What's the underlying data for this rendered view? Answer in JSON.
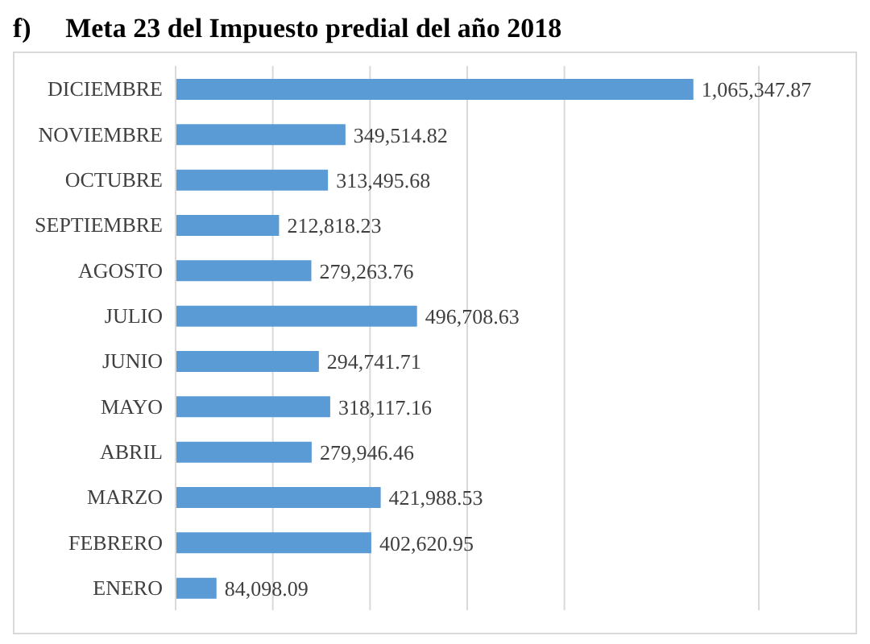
{
  "chart_data": {
    "type": "bar",
    "orientation": "horizontal",
    "title": "f)     Meta 23 del Impuesto predial del año 2018",
    "categories": [
      "DICIEMBRE",
      "NOVIEMBRE",
      "OCTUBRE",
      "SEPTIEMBRE",
      "AGOSTO",
      "JULIO",
      "JUNIO",
      "MAYO",
      "ABRIL",
      "MARZO",
      "FEBRERO",
      "ENERO"
    ],
    "values": [
      1065347.87,
      349514.82,
      313495.68,
      212818.23,
      279263.76,
      496708.63,
      294741.71,
      318117.16,
      279946.46,
      421988.53,
      402620.95,
      84098.09
    ],
    "value_labels": [
      "1,065,347.87",
      "349,514.82",
      "313,495.68",
      "212,818.23",
      "279,263.76",
      "496,708.63",
      "294,741.71",
      "318,117.16",
      "279,946.46",
      "421,988.53",
      "402,620.95",
      "84,098.09"
    ],
    "color": "#5b9bd5",
    "grid": "x",
    "tick_labels": "y"
  }
}
